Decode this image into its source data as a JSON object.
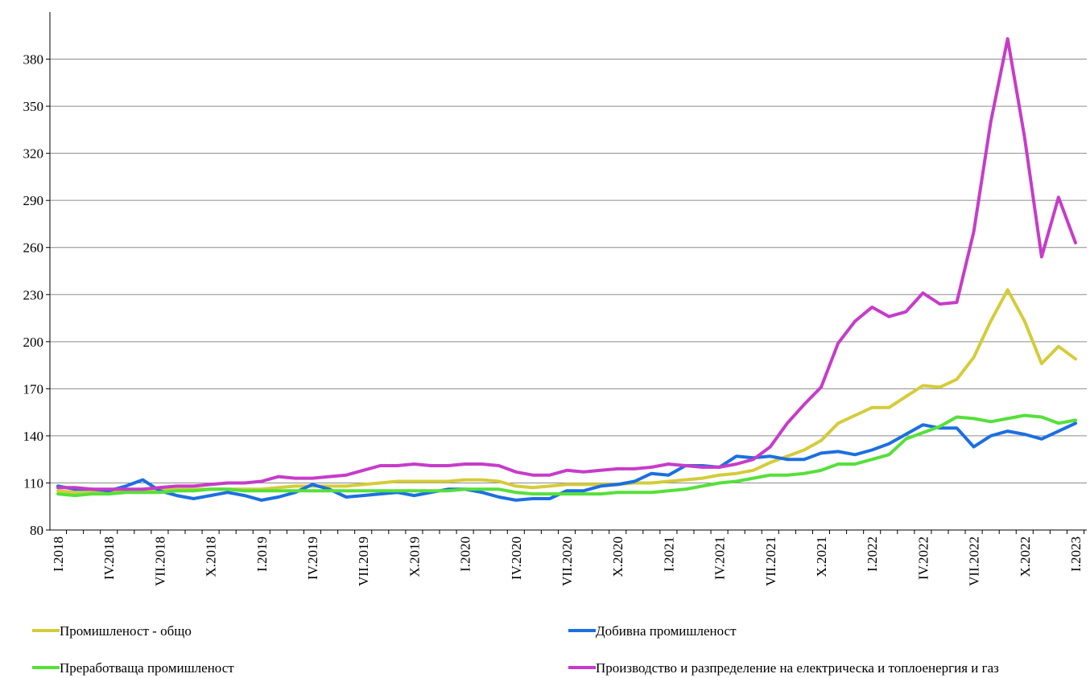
{
  "chart_data": {
    "type": "line",
    "title": "",
    "xlabel": "",
    "ylabel": "",
    "ylim": [
      80,
      410
    ],
    "yticks": [
      80,
      110,
      140,
      170,
      200,
      230,
      260,
      290,
      320,
      350,
      380
    ],
    "grid": "horizontal",
    "legend_position": "bottom",
    "x_tick_labels": [
      "I.2018",
      "IV.2018",
      "VII.2018",
      "X.2018",
      "I.2019",
      "IV.2019",
      "VII.2019",
      "X.2019",
      "I.2020",
      "IV.2020",
      "VII.2020",
      "X.2020",
      "I.2021",
      "IV.2021",
      "VII.2021",
      "X.2021",
      "I.2022",
      "IV.2022",
      "VII.2022",
      "X.2022",
      "I.2023"
    ],
    "x_tick_every": 3,
    "months": [
      "I.2018",
      "II.2018",
      "III.2018",
      "IV.2018",
      "V.2018",
      "VI.2018",
      "VII.2018",
      "VIII.2018",
      "IX.2018",
      "X.2018",
      "XI.2018",
      "XII.2018",
      "I.2019",
      "II.2019",
      "III.2019",
      "IV.2019",
      "V.2019",
      "VI.2019",
      "VII.2019",
      "VIII.2019",
      "IX.2019",
      "X.2019",
      "XI.2019",
      "XII.2019",
      "I.2020",
      "II.2020",
      "III.2020",
      "IV.2020",
      "V.2020",
      "VI.2020",
      "VII.2020",
      "VIII.2020",
      "IX.2020",
      "X.2020",
      "XI.2020",
      "XII.2020",
      "I.2021",
      "II.2021",
      "III.2021",
      "IV.2021",
      "V.2021",
      "VI.2021",
      "VII.2021",
      "VIII.2021",
      "IX.2021",
      "X.2021",
      "XI.2021",
      "XII.2021",
      "I.2022",
      "II.2022",
      "III.2022",
      "IV.2022",
      "V.2022",
      "VI.2022",
      "VII.2022",
      "VIII.2022",
      "IX.2022",
      "X.2022",
      "XI.2022",
      "XII.2022",
      "I.2023"
    ],
    "series": [
      {
        "name": "Промишленост - общо",
        "color": "#D4CC3A",
        "values": [
          105,
          104,
          104,
          104,
          105,
          105,
          106,
          106,
          106,
          106,
          106,
          106,
          106,
          107,
          108,
          108,
          108,
          108,
          109,
          110,
          111,
          111,
          111,
          111,
          112,
          112,
          111,
          108,
          107,
          108,
          109,
          109,
          109,
          109,
          110,
          110,
          111,
          112,
          113,
          115,
          116,
          118,
          123,
          127,
          131,
          137,
          148,
          153,
          158,
          158,
          165,
          172,
          171,
          176,
          190,
          213,
          233,
          213,
          186,
          197,
          189
        ]
      },
      {
        "name": "Добивна промишленост",
        "color": "#1C6FE0",
        "values": [
          108,
          106,
          106,
          105,
          108,
          112,
          105,
          102,
          100,
          102,
          104,
          102,
          99,
          101,
          104,
          109,
          106,
          101,
          102,
          103,
          104,
          102,
          104,
          106,
          106,
          104,
          101,
          99,
          100,
          100,
          105,
          105,
          108,
          109,
          111,
          116,
          115,
          121,
          121,
          120,
          127,
          126,
          127,
          125,
          125,
          129,
          130,
          128,
          131,
          135,
          141,
          147,
          145,
          145,
          133,
          140,
          143,
          141,
          138,
          143,
          148
        ]
      },
      {
        "name": "Преработваща промишленост",
        "color": "#55E03A",
        "values": [
          103,
          102,
          103,
          103,
          104,
          104,
          104,
          105,
          105,
          106,
          106,
          105,
          105,
          105,
          105,
          105,
          105,
          105,
          105,
          105,
          105,
          105,
          105,
          105,
          106,
          106,
          106,
          104,
          103,
          103,
          103,
          103,
          103,
          104,
          104,
          104,
          105,
          106,
          108,
          110,
          111,
          113,
          115,
          115,
          116,
          118,
          122,
          122,
          125,
          128,
          138,
          142,
          146,
          152,
          151,
          149,
          151,
          153,
          152,
          148,
          150
        ]
      },
      {
        "name": "Производство и разпределение на електрическа и топлоенергия  и газ",
        "color": "#C63CC9",
        "values": [
          107,
          107,
          106,
          106,
          106,
          106,
          107,
          108,
          108,
          109,
          110,
          110,
          111,
          114,
          113,
          113,
          114,
          115,
          118,
          121,
          121,
          122,
          121,
          121,
          122,
          122,
          121,
          117,
          115,
          115,
          118,
          117,
          118,
          119,
          119,
          120,
          122,
          121,
          120,
          120,
          122,
          125,
          133,
          148,
          160,
          171,
          199,
          213,
          222,
          216,
          219,
          231,
          224,
          225,
          270,
          340,
          393,
          330,
          254,
          292,
          263
        ]
      }
    ]
  }
}
